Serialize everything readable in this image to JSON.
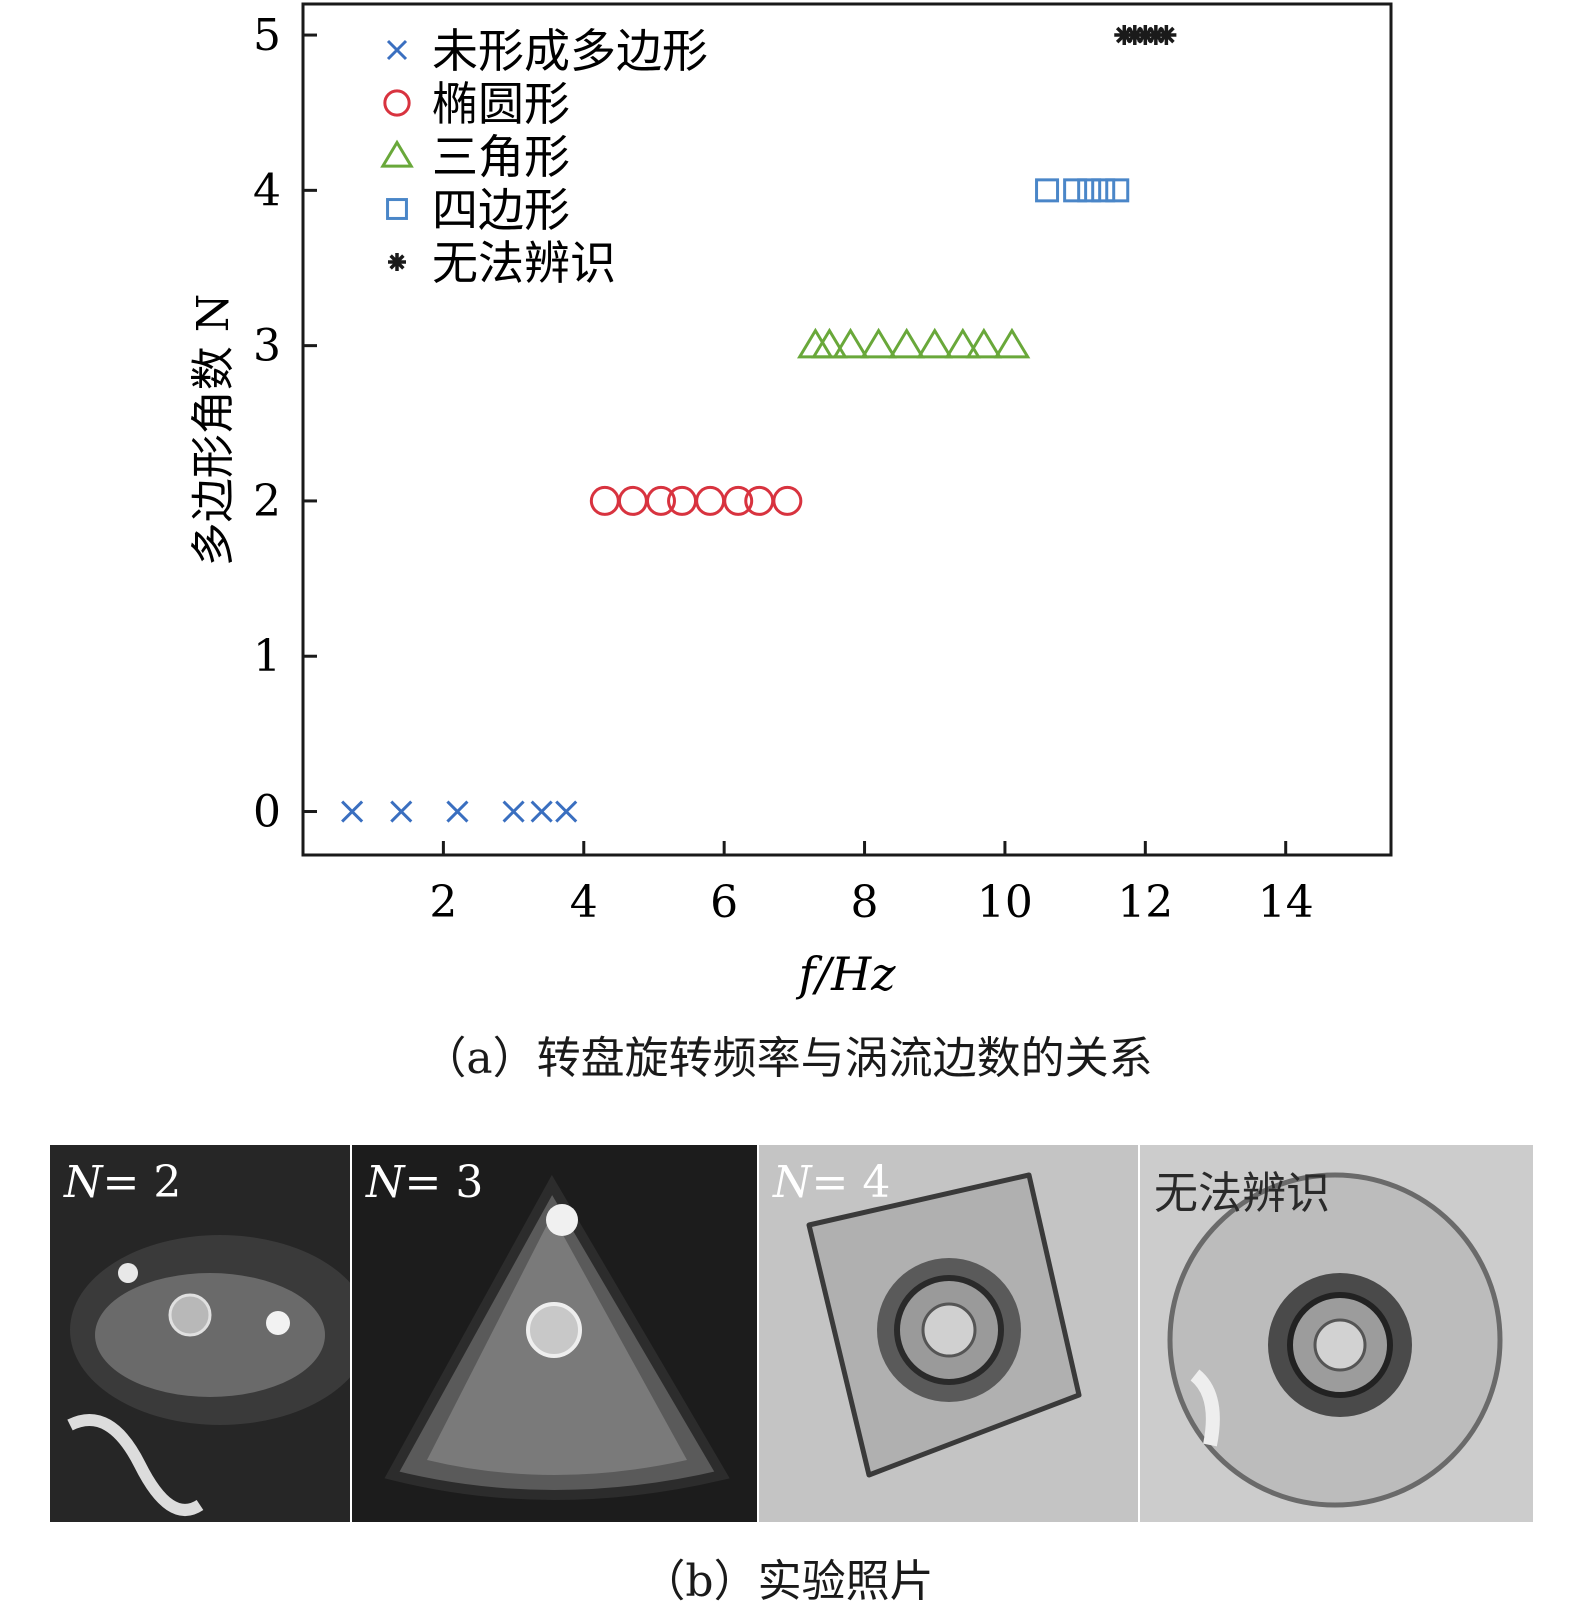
{
  "chart_data": {
    "type": "scatter",
    "xlabel": "f/Hz",
    "ylabel": "多边形角数 N",
    "xlim": [
      0,
      15.5
    ],
    "ylim": [
      -0.28,
      5.2
    ],
    "xticks": [
      2,
      4,
      6,
      8,
      10,
      12,
      14
    ],
    "yticks": [
      0,
      1,
      2,
      3,
      4,
      5
    ],
    "grid": false,
    "legend_position": "top-left",
    "series": [
      {
        "name": "未形成多边形",
        "marker": "x",
        "color": "#3a6fc0",
        "x": [
          0.7,
          1.4,
          2.2,
          3.0,
          3.4,
          3.75
        ],
        "y": [
          0,
          0,
          0,
          0,
          0,
          0
        ]
      },
      {
        "name": "椭圆形",
        "marker": "circle",
        "color": "#d8333f",
        "x": [
          4.3,
          4.7,
          5.1,
          5.4,
          5.8,
          6.2,
          6.5,
          6.9
        ],
        "y": [
          2,
          2,
          2,
          2,
          2,
          2,
          2,
          2
        ]
      },
      {
        "name": "三角形",
        "marker": "triangle",
        "color": "#69a83a",
        "x": [
          7.3,
          7.5,
          7.8,
          8.2,
          8.6,
          9.0,
          9.4,
          9.7,
          10.1
        ],
        "y": [
          3,
          3,
          3,
          3,
          3,
          3,
          3,
          3,
          3
        ]
      },
      {
        "name": "四边形",
        "marker": "square",
        "color": "#4a86c8",
        "x": [
          10.6,
          11.0,
          11.2,
          11.4,
          11.6
        ],
        "y": [
          4,
          4,
          4,
          4,
          4
        ]
      },
      {
        "name": "无法辨识",
        "marker": "asterisk",
        "color": "#1a1a1a",
        "x": [
          11.7,
          11.85,
          12.0,
          12.15,
          12.3
        ],
        "y": [
          5,
          5,
          5,
          5,
          5
        ]
      }
    ]
  },
  "captions": {
    "a": "（a）转盘旋转频率与涡流边数的关系",
    "b": "（b）实验照片"
  },
  "photos": [
    {
      "label_var": "N",
      "label_rest": "= 2"
    },
    {
      "label_var": "N",
      "label_rest": "= 3"
    },
    {
      "label_var": "N",
      "label_rest": "= 4"
    },
    {
      "label_var": "",
      "label_rest": "无法辨识"
    }
  ]
}
